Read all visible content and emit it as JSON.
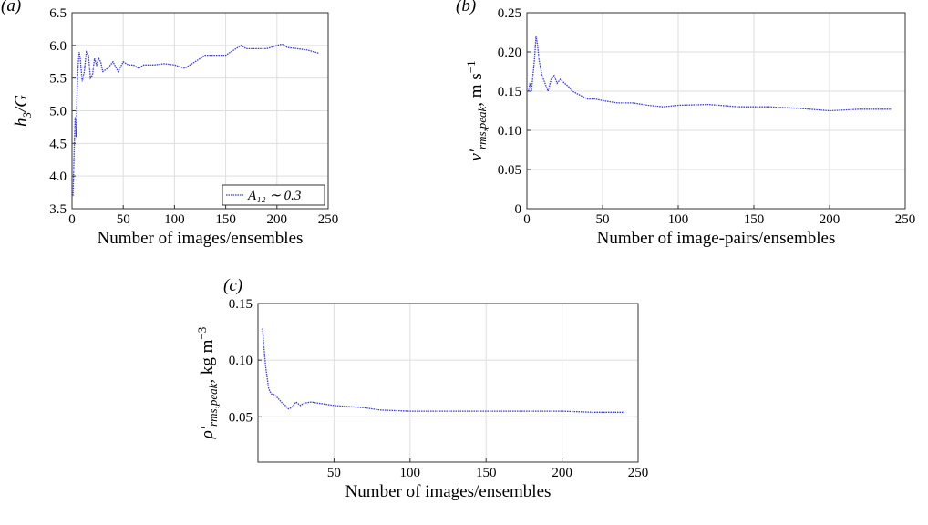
{
  "chart_data": [
    {
      "type": "line",
      "panel_label": "(a)",
      "xlabel": "Number of images/ensembles",
      "ylabel": {
        "main": "h",
        "sub": "3",
        "rest": "/G"
      },
      "xlim": [
        0,
        250
      ],
      "xticks": [
        0,
        50,
        100,
        150,
        200,
        250
      ],
      "ylim": [
        3.5,
        6.5
      ],
      "yticks": [
        3.5,
        {
          "value": 4,
          "label": "4.0"
        },
        4.5,
        {
          "value": 5,
          "label": "5.0"
        },
        5.5,
        {
          "value": 6,
          "label": "6.0"
        },
        6.5
      ],
      "grid": true,
      "legend": "lower right",
      "x": [
        1,
        2,
        3,
        4,
        5,
        6,
        7,
        8,
        10,
        12,
        14,
        16,
        18,
        20,
        22,
        24,
        26,
        28,
        30,
        35,
        40,
        45,
        50,
        55,
        60,
        65,
        70,
        80,
        90,
        100,
        110,
        120,
        130,
        140,
        150,
        160,
        165,
        170,
        180,
        190,
        200,
        205,
        210,
        220,
        230,
        241
      ],
      "series": [
        {
          "name": "A₁₂ ∼ 0.3",
          "color": "#3333ff",
          "values": [
            3.7,
            4.3,
            4.9,
            4.6,
            5.3,
            5.7,
            5.9,
            5.8,
            5.45,
            5.6,
            5.9,
            5.85,
            5.5,
            5.55,
            5.8,
            5.7,
            5.8,
            5.75,
            5.6,
            5.65,
            5.75,
            5.6,
            5.75,
            5.7,
            5.7,
            5.65,
            5.7,
            5.7,
            5.72,
            5.7,
            5.65,
            5.75,
            5.85,
            5.85,
            5.85,
            5.95,
            6.0,
            5.95,
            5.95,
            5.95,
            6.0,
            6.02,
            5.97,
            5.95,
            5.93,
            5.88
          ]
        }
      ]
    },
    {
      "type": "line",
      "panel_label": "(b)",
      "xlabel": "Number of image-pairs/ensembles",
      "ylabel": {
        "main": "v′",
        "sub": "rms,peak",
        "rest": ", m s",
        "sup": "−1"
      },
      "xlim": [
        0,
        250
      ],
      "xticks": [
        0,
        50,
        100,
        150,
        200,
        250
      ],
      "ylim": [
        0,
        0.25
      ],
      "yticks": [
        0,
        0.05,
        {
          "value": 0.1,
          "label": "0.10"
        },
        0.15,
        {
          "value": 0.2,
          "label": "0.20"
        },
        0.25
      ],
      "grid": true,
      "x": [
        1,
        2,
        3,
        4,
        5,
        6,
        7,
        8,
        10,
        12,
        14,
        16,
        18,
        20,
        22,
        25,
        28,
        30,
        35,
        40,
        45,
        50,
        60,
        70,
        80,
        90,
        100,
        120,
        140,
        160,
        180,
        200,
        220,
        241
      ],
      "series": [
        {
          "color": "#3333ff",
          "values": [
            0.15,
            0.16,
            0.15,
            0.17,
            0.19,
            0.22,
            0.21,
            0.19,
            0.17,
            0.16,
            0.15,
            0.165,
            0.17,
            0.16,
            0.165,
            0.16,
            0.155,
            0.15,
            0.145,
            0.14,
            0.14,
            0.138,
            0.135,
            0.135,
            0.132,
            0.13,
            0.132,
            0.133,
            0.13,
            0.13,
            0.128,
            0.125,
            0.127,
            0.127
          ]
        }
      ]
    },
    {
      "type": "line",
      "panel_label": "(c)",
      "xlabel": "Number of images/ensembles",
      "ylabel": {
        "main": "ρ′",
        "sub": "rms,peak",
        "rest": ", kg m",
        "sup": "−3"
      },
      "xlim": [
        0,
        250
      ],
      "xticks": [
        50,
        100,
        150,
        200,
        250
      ],
      "ylim": [
        0.01,
        0.15
      ],
      "yticks": [
        0.05,
        {
          "value": 0.1,
          "label": "0.10"
        },
        0.15
      ],
      "grid": true,
      "x": [
        3,
        4,
        5,
        6,
        7,
        8,
        9,
        10,
        12,
        14,
        16,
        18,
        20,
        22,
        25,
        28,
        30,
        35,
        40,
        50,
        60,
        70,
        80,
        100,
        120,
        140,
        160,
        180,
        200,
        220,
        241
      ],
      "series": [
        {
          "color": "#3333ff",
          "values": [
            0.128,
            0.11,
            0.095,
            0.085,
            0.075,
            0.072,
            0.07,
            0.07,
            0.068,
            0.065,
            0.062,
            0.06,
            0.057,
            0.058,
            0.063,
            0.06,
            0.062,
            0.063,
            0.062,
            0.06,
            0.059,
            0.058,
            0.056,
            0.055,
            0.055,
            0.055,
            0.055,
            0.055,
            0.055,
            0.054,
            0.054
          ]
        }
      ]
    }
  ]
}
